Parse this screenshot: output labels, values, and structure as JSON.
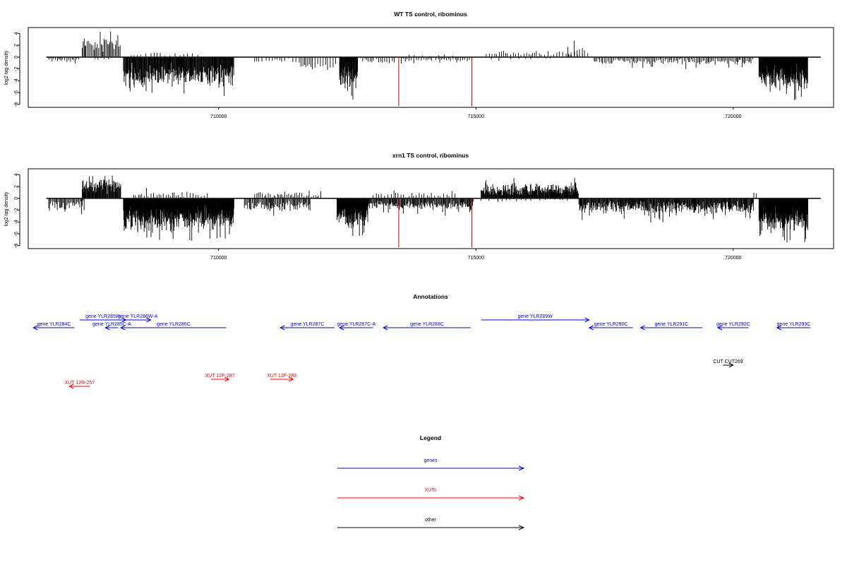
{
  "panels": [
    {
      "title": "WT TS control, ribominus",
      "ylabel": "log2 tag density",
      "ylim": [
        -8.5,
        5
      ],
      "yticks": [
        4,
        2,
        0,
        -2,
        -4,
        -6,
        -8
      ],
      "xlim": [
        706300,
        721950
      ],
      "xticks": [
        710000,
        715000,
        720000
      ],
      "baseline": [
        706650,
        721700
      ],
      "red_lines": [
        {
          "x": 713500,
          "y": -8.3
        },
        {
          "x": 714920,
          "y": -8.3
        }
      ],
      "tracks": [
        {
          "from": 706700,
          "to": 707300,
          "sign": -1,
          "step": 35,
          "base": 0.4,
          "amp": 0.8
        },
        {
          "from": 707350,
          "to": 708100,
          "sign": 1,
          "step": 22,
          "base": 1.8,
          "amp": 2.6
        },
        {
          "from": 707600,
          "to": 707900,
          "sign": -1,
          "step": 45,
          "base": 0.2,
          "amp": 0.6
        },
        {
          "from": 708150,
          "to": 710300,
          "sign": -1,
          "step": 10,
          "base": 2.6,
          "amp": 3.8
        },
        {
          "from": 708300,
          "to": 709700,
          "sign": 1,
          "step": 90,
          "base": 0.3,
          "amp": 0.9
        },
        {
          "from": 710700,
          "to": 711600,
          "sign": -1,
          "step": 60,
          "base": 0.5,
          "amp": 1.0
        },
        {
          "from": 711600,
          "to": 712300,
          "sign": -1,
          "step": 40,
          "base": 0.9,
          "amp": 2.2
        },
        {
          "from": 712350,
          "to": 712700,
          "sign": -1,
          "step": 8,
          "base": 3.0,
          "amp": 4.8
        },
        {
          "from": 712800,
          "to": 713450,
          "sign": -1,
          "step": 45,
          "base": 0.4,
          "amp": 1.2
        },
        {
          "from": 713550,
          "to": 714900,
          "sign": -1,
          "step": 40,
          "base": 0.3,
          "amp": 0.9
        },
        {
          "from": 713700,
          "to": 714700,
          "sign": 1,
          "step": 130,
          "base": 0.2,
          "amp": 0.6
        },
        {
          "from": 715200,
          "to": 717200,
          "sign": 1,
          "step": 50,
          "base": 0.5,
          "amp": 1.2
        },
        {
          "from": 715300,
          "to": 716500,
          "sign": -1,
          "step": 120,
          "base": 0.1,
          "amp": 0.6
        },
        {
          "from": 716800,
          "to": 717100,
          "sign": 1,
          "step": 70,
          "base": 1.5,
          "amp": 1.8
        },
        {
          "from": 717300,
          "to": 720400,
          "sign": -1,
          "step": 28,
          "base": 0.5,
          "amp": 1.5
        },
        {
          "from": 720500,
          "to": 721450,
          "sign": -1,
          "step": 6,
          "base": 2.8,
          "amp": 4.4
        }
      ]
    },
    {
      "title": "xrn1 TS control, ribominus",
      "ylabel": "log2 tag density",
      "ylim": [
        -8.5,
        5
      ],
      "yticks": [
        4,
        2,
        0,
        -2,
        -4,
        -6,
        -8
      ],
      "xlim": [
        706300,
        721950
      ],
      "xticks": [
        710000,
        715000,
        720000
      ],
      "baseline": [
        706650,
        721700
      ],
      "red_lines": [
        {
          "x": 713500,
          "y": -8.3
        },
        {
          "x": 714920,
          "y": -8.3
        }
      ],
      "tracks": [
        {
          "from": 706700,
          "to": 707400,
          "sign": -1,
          "step": 18,
          "base": 0.8,
          "amp": 2.6
        },
        {
          "from": 707350,
          "to": 708100,
          "sign": 1,
          "step": 10,
          "base": 1.8,
          "amp": 2.8
        },
        {
          "from": 708150,
          "to": 710300,
          "sign": -1,
          "step": 6,
          "base": 2.8,
          "amp": 4.6
        },
        {
          "from": 708350,
          "to": 709800,
          "sign": 1,
          "step": 45,
          "base": 0.4,
          "amp": 1.5
        },
        {
          "from": 710500,
          "to": 711800,
          "sign": -1,
          "step": 18,
          "base": 0.9,
          "amp": 2.6
        },
        {
          "from": 710700,
          "to": 712000,
          "sign": 1,
          "step": 35,
          "base": 0.5,
          "amp": 1.0
        },
        {
          "from": 712300,
          "to": 712900,
          "sign": -1,
          "step": 6,
          "base": 2.6,
          "amp": 4.0
        },
        {
          "from": 712900,
          "to": 714950,
          "sign": -1,
          "step": 14,
          "base": 0.8,
          "amp": 2.2
        },
        {
          "from": 713000,
          "to": 714600,
          "sign": 1,
          "step": 50,
          "base": 0.3,
          "amp": 1.2
        },
        {
          "from": 715100,
          "to": 717000,
          "sign": 1,
          "step": 9,
          "base": 1.2,
          "amp": 2.2
        },
        {
          "from": 715100,
          "to": 716800,
          "sign": -1,
          "step": 80,
          "base": 0.2,
          "amp": 0.6
        },
        {
          "from": 717000,
          "to": 720400,
          "sign": -1,
          "step": 11,
          "base": 1.0,
          "amp": 3.0
        },
        {
          "from": 720400,
          "to": 720500,
          "sign": 1,
          "step": 60,
          "base": 1.0,
          "amp": 0.8
        },
        {
          "from": 720500,
          "to": 721450,
          "sign": -1,
          "step": 5,
          "base": 2.8,
          "amp": 4.6
        }
      ]
    }
  ],
  "annotations": {
    "title": "Annotations",
    "xlim": [
      706300,
      721950
    ],
    "items": [
      {
        "label": "gene YLR284C",
        "start": 707200,
        "end": 706400,
        "row": 1,
        "color": "#0000ff"
      },
      {
        "label": "gene YLR285W",
        "start": 707300,
        "end": 708200,
        "row": 0,
        "color": "#0000ff"
      },
      {
        "label": "gene YLR286W-A",
        "start": 708180,
        "end": 708680,
        "row": 0,
        "color": "#0000ff"
      },
      {
        "label": "gene YLR285C-A",
        "start": 708050,
        "end": 707800,
        "row": 1,
        "color": "#0000ff"
      },
      {
        "label": "gene YLR286C",
        "start": 710150,
        "end": 708100,
        "row": 1,
        "color": "#0000ff"
      },
      {
        "label": "gene YLR287C",
        "start": 712250,
        "end": 711200,
        "row": 1,
        "color": "#0000ff"
      },
      {
        "label": "gene YLR287C-A",
        "start": 713000,
        "end": 712350,
        "row": 1,
        "color": "#0000ff"
      },
      {
        "label": "gene YLR288C",
        "start": 714900,
        "end": 713200,
        "row": 1,
        "color": "#0000ff"
      },
      {
        "label": "gene YLR289W",
        "start": 715100,
        "end": 717200,
        "row": 0,
        "color": "#0000ff"
      },
      {
        "label": "gene YLR290C",
        "start": 718050,
        "end": 717200,
        "row": 1,
        "color": "#0000ff"
      },
      {
        "label": "gene YLR291C",
        "start": 719400,
        "end": 718200,
        "row": 1,
        "color": "#0000ff"
      },
      {
        "label": "gene YLR292C",
        "start": 720300,
        "end": 719700,
        "row": 1,
        "color": "#0000ff"
      },
      {
        "label": "gene YLR293C",
        "start": 721500,
        "end": 720850,
        "row": 1,
        "color": "#0000ff"
      },
      {
        "label": "CUT CUT269",
        "start": 719800,
        "end": 720000,
        "row": 2,
        "color": "#000000"
      },
      {
        "label": "XUT 12F-287",
        "start": 709850,
        "end": 710200,
        "row": 3,
        "color": "#ff0000"
      },
      {
        "label": "XUT 12F-289",
        "start": 711000,
        "end": 711450,
        "row": 3,
        "color": "#ff0000"
      },
      {
        "label": "XUT 12R-257",
        "start": 707500,
        "end": 707100,
        "row": 4,
        "color": "#ff0000"
      }
    ]
  },
  "legend": {
    "title": "Legend",
    "entries": [
      {
        "label": "genes",
        "color": "#0000ff"
      },
      {
        "label": "XUTs",
        "color": "#ff0000"
      },
      {
        "label": "other",
        "color": "#000000"
      }
    ]
  }
}
